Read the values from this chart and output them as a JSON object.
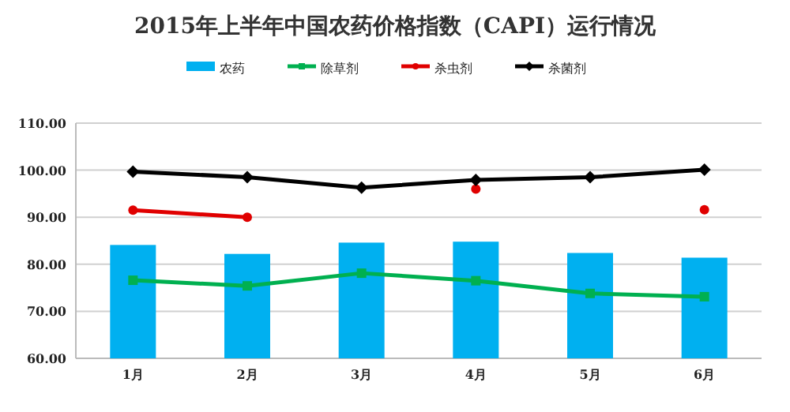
{
  "chart_data": {
    "type": "bar",
    "title": "2015年上半年中国农药价格指数（CAPI）运行情况",
    "categories": [
      "1月",
      "2月",
      "3月",
      "4月",
      "5月",
      "6月"
    ],
    "series": [
      {
        "name": "农药",
        "color": "#00b0f0",
        "values": [
          84.1,
          82.2,
          84.6,
          84.8,
          82.4,
          81.4
        ]
      },
      {
        "name": "除草剂",
        "color": "#00b050",
        "type": "line",
        "marker": "square",
        "values": [
          76.6,
          75.4,
          78.1,
          76.5,
          73.8,
          73.1
        ]
      },
      {
        "name": "杀虫剂",
        "color": "#e00000",
        "type": "line",
        "marker": "circle",
        "values": [
          91.5,
          90.0,
          null,
          96.0,
          null,
          91.6
        ]
      },
      {
        "name": "杀菌剂",
        "color": "#000000",
        "type": "line",
        "marker": "diamond",
        "values": [
          99.7,
          98.5,
          96.3,
          97.9,
          98.5,
          100.1
        ]
      }
    ],
    "ylim": [
      60,
      110
    ],
    "yticks": [
      {
        "value": 60,
        "label": "60.00"
      },
      {
        "value": 70,
        "label": "70.00"
      },
      {
        "value": 80,
        "label": "80.00"
      },
      {
        "value": 90,
        "label": "90.00"
      },
      {
        "value": 100,
        "label": "100.00"
      },
      {
        "value": 110,
        "label": "110.00"
      }
    ],
    "grid": "y",
    "legend": "top"
  }
}
